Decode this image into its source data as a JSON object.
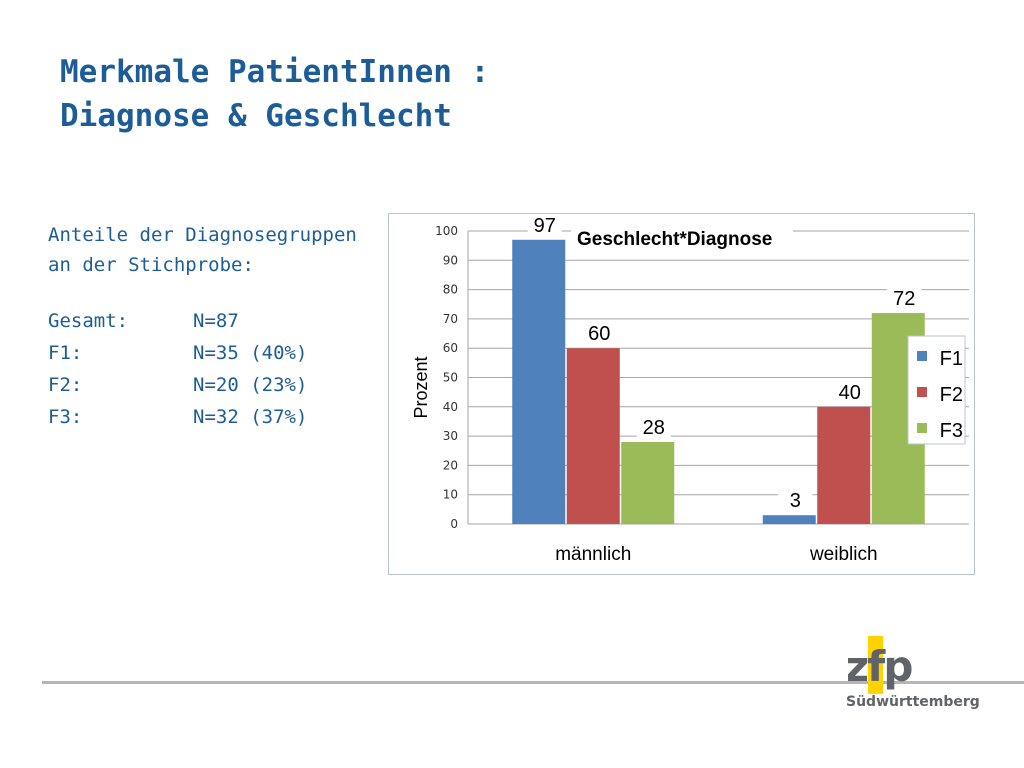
{
  "slide": {
    "title_line1": "Merkmale PatientInnen :",
    "title_line2": "Diagnose & Geschlecht",
    "subtitle_line1": "Anteile der Diagnosegruppen",
    "subtitle_line2": "an der Stichprobe:",
    "stats": [
      {
        "label": "Gesamt:",
        "value": "N=87"
      },
      {
        "label": "F1:",
        "value": "N=35 (40%)"
      },
      {
        "label": "F2:",
        "value": "N=20 (23%)"
      },
      {
        "label": "F3:",
        "value": "N=32 (37%)"
      }
    ],
    "logo_text": "zfp",
    "logo_subtitle": "Südwürttemberg",
    "colors": {
      "title": "#1c5d97",
      "logo_yellow": "#ffd200",
      "logo_text": "#606468"
    }
  },
  "chart_data": {
    "type": "bar",
    "title": "Geschlecht*Diagnose",
    "ylabel": "Prozent",
    "xlabel": "",
    "categories": [
      "männlich",
      "weiblich"
    ],
    "series": [
      {
        "name": "F1",
        "values": [
          97,
          3
        ],
        "color": "#4f81bd"
      },
      {
        "name": "F2",
        "values": [
          60,
          40
        ],
        "color": "#c0504d"
      },
      {
        "name": "F3",
        "values": [
          28,
          72
        ],
        "color": "#9bbb59"
      }
    ],
    "ylim": [
      0,
      100
    ],
    "yticks": [
      0,
      10,
      20,
      30,
      40,
      50,
      60,
      70,
      80,
      90,
      100
    ],
    "grid": true,
    "legend_position": "right"
  }
}
